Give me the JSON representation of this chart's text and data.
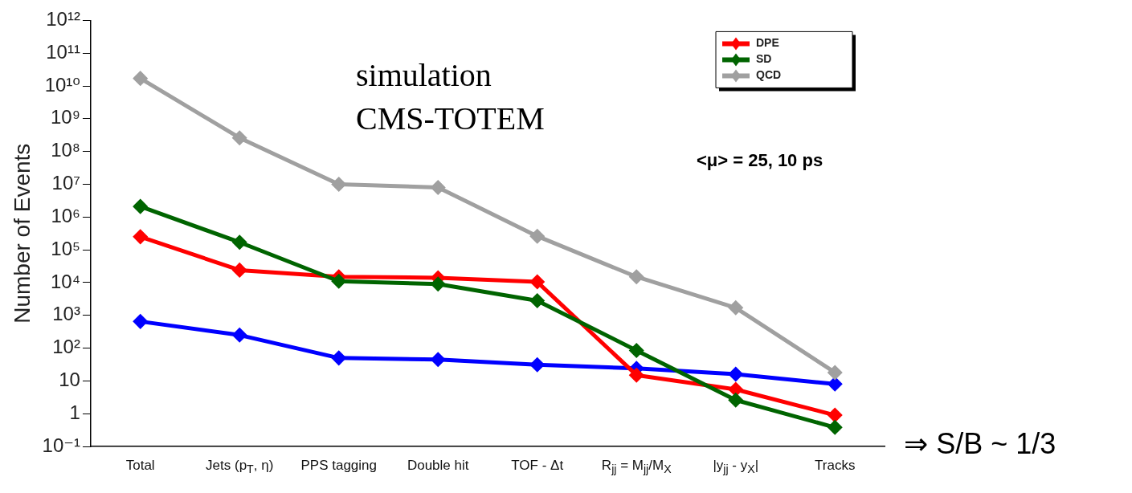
{
  "chart_data": {
    "type": "line",
    "ylabel": "Number of Events",
    "categories": [
      "Total",
      "Jets (p$_{T}$, η)",
      "PPS tagging",
      "Double hit",
      "TOF - Δt",
      "R$_{jj}$ = M$_{jj}$/M$_{X}$",
      "|y$_{jj}$ - y$_{X}$|",
      "Tracks"
    ],
    "series": [
      {
        "color": "#0000ff",
        "values": [
          650,
          250,
          50,
          45,
          31,
          24,
          16,
          8
        ]
      },
      {
        "name": "DPE",
        "color": "#ff0000",
        "values": [
          250000,
          24000,
          15000,
          14000,
          10500,
          15,
          5.5,
          0.9
        ]
      },
      {
        "name": "SD",
        "color": "#006400",
        "values": [
          2100000,
          170000,
          11000,
          9000,
          2800,
          85,
          2.6,
          0.38
        ]
      },
      {
        "name": "QCD",
        "color": "#a0a0a0",
        "values": [
          17000000000,
          260000000,
          10000000,
          8000000,
          260000,
          15000,
          1700,
          18
        ]
      }
    ],
    "log": "y",
    "ylim": [
      0.1,
      1000000000000
    ],
    "yticks": [
      {
        "value": 0.1,
        "label": "10⁻¹"
      },
      1,
      10,
      {
        "value": 100,
        "label": "10²"
      },
      {
        "value": 1000,
        "label": "10³"
      },
      {
        "value": 10000,
        "label": "10⁴"
      },
      {
        "value": 100000,
        "label": "10⁵"
      },
      {
        "value": 1000000,
        "label": "10⁶"
      },
      {
        "value": 10000000,
        "label": "10⁷"
      },
      {
        "value": 100000000,
        "label": "10⁸"
      },
      {
        "value": 1000000000,
        "label": "10⁹"
      },
      {
        "value": 10000000000,
        "label": "10¹⁰"
      },
      {
        "value": 100000000000,
        "label": "10¹¹"
      },
      {
        "value": 1000000000000,
        "label": "10¹²"
      }
    ],
    "grid": false,
    "legend": "top right",
    "marker": "diamond",
    "line_style": "solid",
    "annotations": [
      "simulation",
      "CMS-TOTEM",
      "<μ> = 25, 10 ps",
      "⇒ S/B ~ 1/3"
    ]
  }
}
